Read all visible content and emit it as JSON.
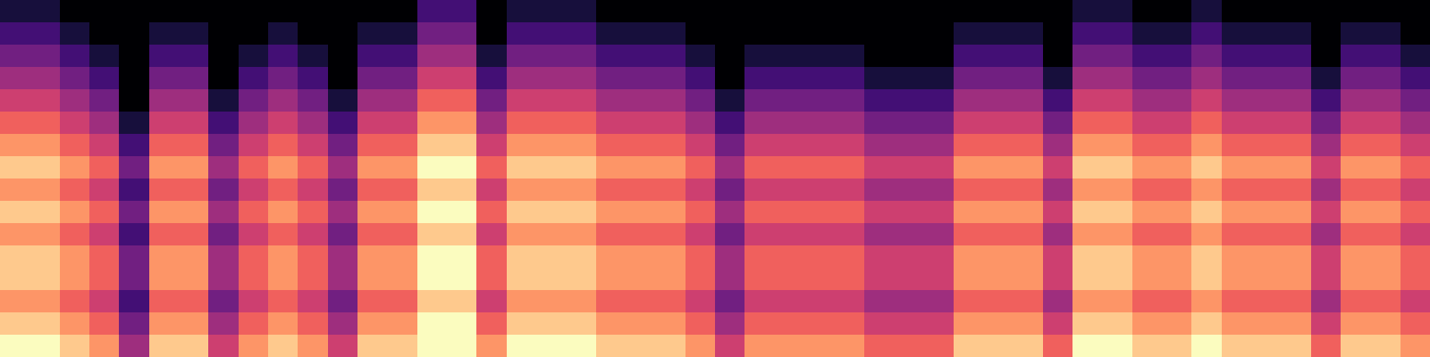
{
  "chart_data": {
    "type": "heatmap",
    "color": "magma",
    "tick_labels": false,
    "color_range": [
      0,
      9
    ],
    "cells": [
      [
        1,
        1,
        0,
        0,
        0,
        0,
        0,
        0,
        0,
        0,
        0,
        0,
        0,
        0,
        2,
        2,
        0,
        1,
        1,
        1,
        0,
        0,
        0,
        0,
        0,
        0,
        0,
        0,
        0,
        0,
        0,
        0,
        0,
        0,
        0,
        0,
        1,
        1,
        0,
        0,
        1,
        0,
        0,
        0,
        0,
        0,
        0,
        0
      ],
      [
        2,
        2,
        1,
        0,
        0,
        1,
        1,
        0,
        0,
        1,
        0,
        0,
        1,
        1,
        3,
        3,
        0,
        2,
        2,
        2,
        1,
        1,
        1,
        0,
        0,
        0,
        0,
        0,
        0,
        0,
        0,
        0,
        1,
        1,
        1,
        0,
        2,
        2,
        1,
        1,
        2,
        1,
        1,
        1,
        0,
        1,
        1,
        0
      ],
      [
        3,
        3,
        2,
        1,
        0,
        2,
        2,
        0,
        1,
        2,
        1,
        0,
        2,
        2,
        4,
        4,
        1,
        3,
        3,
        3,
        2,
        2,
        2,
        1,
        0,
        1,
        1,
        1,
        1,
        0,
        0,
        0,
        2,
        2,
        2,
        0,
        3,
        3,
        2,
        2,
        3,
        2,
        2,
        2,
        0,
        2,
        2,
        1
      ],
      [
        4,
        4,
        3,
        2,
        0,
        3,
        3,
        0,
        2,
        3,
        2,
        0,
        3,
        3,
        5,
        5,
        2,
        4,
        4,
        4,
        3,
        3,
        3,
        2,
        0,
        2,
        2,
        2,
        2,
        1,
        1,
        1,
        3,
        3,
        3,
        1,
        4,
        4,
        3,
        3,
        4,
        3,
        3,
        3,
        1,
        3,
        3,
        2
      ],
      [
        5,
        5,
        4,
        3,
        0,
        4,
        4,
        1,
        3,
        4,
        3,
        1,
        4,
        4,
        6,
        6,
        3,
        5,
        5,
        5,
        4,
        4,
        4,
        3,
        1,
        3,
        3,
        3,
        3,
        2,
        2,
        2,
        4,
        4,
        4,
        2,
        5,
        5,
        4,
        4,
        5,
        4,
        4,
        4,
        2,
        4,
        4,
        3
      ],
      [
        6,
        6,
        5,
        4,
        1,
        5,
        5,
        2,
        4,
        5,
        4,
        2,
        5,
        5,
        7,
        7,
        4,
        6,
        6,
        6,
        5,
        5,
        5,
        4,
        2,
        4,
        4,
        4,
        4,
        3,
        3,
        3,
        5,
        5,
        5,
        3,
        6,
        6,
        5,
        5,
        6,
        5,
        5,
        5,
        3,
        5,
        5,
        4
      ],
      [
        7,
        7,
        6,
        5,
        2,
        6,
        6,
        3,
        5,
        6,
        5,
        3,
        6,
        6,
        8,
        8,
        5,
        7,
        7,
        7,
        6,
        6,
        6,
        5,
        3,
        5,
        5,
        5,
        5,
        4,
        4,
        4,
        6,
        6,
        6,
        4,
        7,
        7,
        6,
        6,
        7,
        6,
        6,
        6,
        4,
        6,
        6,
        5
      ],
      [
        8,
        8,
        7,
        6,
        3,
        7,
        7,
        4,
        6,
        7,
        6,
        4,
        7,
        7,
        9,
        9,
        6,
        8,
        8,
        8,
        7,
        7,
        7,
        6,
        4,
        6,
        6,
        6,
        6,
        5,
        5,
        5,
        7,
        7,
        7,
        5,
        8,
        8,
        7,
        7,
        8,
        7,
        7,
        7,
        5,
        7,
        7,
        6
      ],
      [
        7,
        7,
        6,
        5,
        2,
        6,
        6,
        3,
        5,
        6,
        5,
        3,
        6,
        6,
        8,
        8,
        5,
        7,
        7,
        7,
        6,
        6,
        6,
        5,
        3,
        5,
        5,
        5,
        5,
        4,
        4,
        4,
        6,
        6,
        6,
        4,
        7,
        7,
        6,
        6,
        7,
        6,
        6,
        6,
        4,
        6,
        6,
        5
      ],
      [
        8,
        8,
        7,
        6,
        3,
        7,
        7,
        4,
        6,
        7,
        6,
        4,
        7,
        7,
        9,
        9,
        6,
        8,
        8,
        8,
        7,
        7,
        7,
        6,
        4,
        6,
        6,
        6,
        6,
        5,
        5,
        5,
        7,
        7,
        7,
        5,
        8,
        8,
        7,
        7,
        8,
        7,
        7,
        7,
        5,
        7,
        7,
        6
      ],
      [
        7,
        7,
        6,
        5,
        2,
        6,
        6,
        3,
        5,
        6,
        5,
        3,
        6,
        6,
        8,
        8,
        5,
        7,
        7,
        7,
        6,
        6,
        6,
        5,
        3,
        5,
        5,
        5,
        5,
        4,
        4,
        4,
        6,
        6,
        6,
        4,
        7,
        7,
        6,
        6,
        7,
        6,
        6,
        6,
        4,
        6,
        6,
        5
      ],
      [
        8,
        8,
        7,
        6,
        3,
        7,
        7,
        4,
        6,
        7,
        6,
        4,
        7,
        7,
        9,
        9,
        6,
        8,
        8,
        8,
        7,
        7,
        7,
        6,
        4,
        6,
        6,
        6,
        6,
        5,
        5,
        5,
        7,
        7,
        7,
        5,
        8,
        8,
        7,
        7,
        8,
        7,
        7,
        7,
        5,
        7,
        7,
        6
      ],
      [
        8,
        8,
        7,
        6,
        3,
        7,
        7,
        4,
        6,
        7,
        6,
        4,
        7,
        7,
        9,
        9,
        6,
        8,
        8,
        8,
        7,
        7,
        7,
        6,
        4,
        6,
        6,
        6,
        6,
        5,
        5,
        5,
        7,
        7,
        7,
        5,
        8,
        8,
        7,
        7,
        8,
        7,
        7,
        7,
        5,
        7,
        7,
        6
      ],
      [
        7,
        7,
        6,
        5,
        2,
        6,
        6,
        3,
        5,
        6,
        5,
        3,
        6,
        6,
        8,
        8,
        5,
        7,
        7,
        7,
        6,
        6,
        6,
        5,
        3,
        5,
        5,
        5,
        5,
        4,
        4,
        4,
        6,
        6,
        6,
        4,
        7,
        7,
        6,
        6,
        7,
        6,
        6,
        6,
        4,
        6,
        6,
        5
      ],
      [
        8,
        8,
        7,
        6,
        3,
        7,
        7,
        4,
        6,
        7,
        6,
        4,
        7,
        7,
        9,
        9,
        6,
        8,
        8,
        8,
        7,
        7,
        7,
        6,
        4,
        6,
        6,
        6,
        6,
        5,
        5,
        5,
        7,
        7,
        7,
        5,
        8,
        8,
        7,
        7,
        8,
        7,
        7,
        7,
        5,
        7,
        7,
        6
      ],
      [
        9,
        9,
        8,
        7,
        4,
        8,
        8,
        5,
        7,
        8,
        7,
        5,
        8,
        8,
        9,
        9,
        7,
        9,
        9,
        9,
        8,
        8,
        8,
        7,
        5,
        7,
        7,
        7,
        7,
        6,
        6,
        6,
        8,
        8,
        8,
        6,
        9,
        9,
        8,
        8,
        9,
        8,
        8,
        8,
        6,
        8,
        8,
        7
      ]
    ]
  }
}
